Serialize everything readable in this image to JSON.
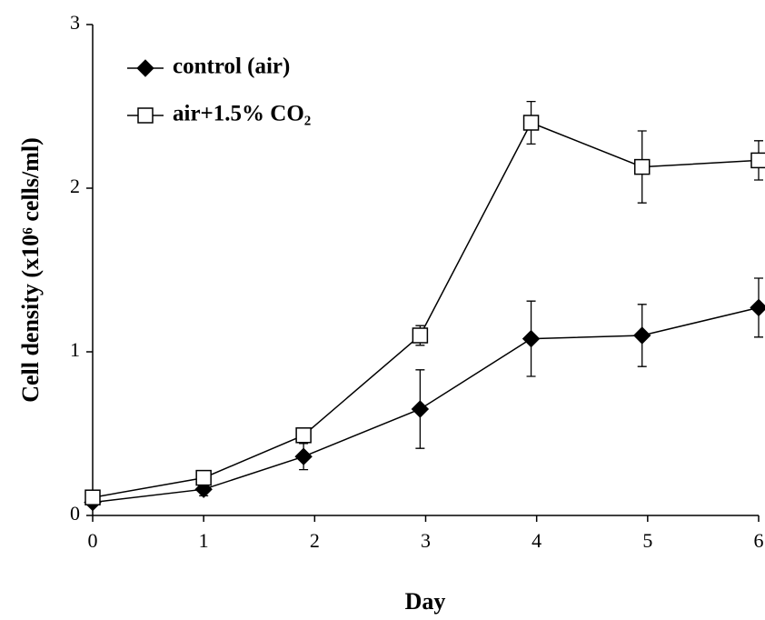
{
  "chart_data": {
    "type": "line",
    "xlabel": "Day",
    "ylabel": "Cell density (x10⁶ cells/ml)",
    "xlim": [
      0,
      6
    ],
    "xticks": [
      0,
      1,
      2,
      3,
      4,
      5,
      6
    ],
    "ylim": [
      0,
      3
    ],
    "yticks": [
      0,
      1,
      2,
      3
    ],
    "legend": "upper left",
    "series": [
      {
        "name": "control (air)",
        "color": "#000000",
        "marker": "diamond",
        "x": [
          0,
          1,
          1.9,
          2.95,
          3.95,
          4.95,
          6
        ],
        "values": [
          0.08,
          0.16,
          0.36,
          0.65,
          1.08,
          1.1,
          1.27
        ],
        "errors": [
          0.02,
          0.04,
          0.08,
          0.24,
          0.23,
          0.19,
          0.18
        ]
      },
      {
        "name": "air+1.5% CO₂",
        "color": "#000000",
        "marker": "square",
        "x": [
          0,
          1,
          1.9,
          2.95,
          3.95,
          4.95,
          6
        ],
        "values": [
          0.11,
          0.23,
          0.49,
          1.1,
          2.4,
          2.13,
          2.17
        ],
        "errors": [
          0.02,
          0.02,
          0.04,
          0.06,
          0.13,
          0.22,
          0.12
        ]
      }
    ]
  }
}
